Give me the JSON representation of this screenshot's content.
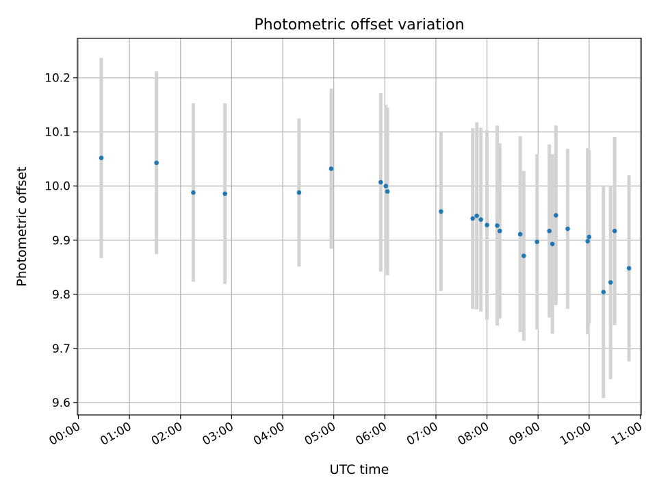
{
  "chart_data": {
    "type": "scatter",
    "title": "Photometric offset variation",
    "xlabel": "UTC time",
    "ylabel": "Photometric offset",
    "x_unit": "hours UTC",
    "xlim": [
      -0.02,
      11.02
    ],
    "ylim": [
      9.577,
      10.273
    ],
    "x_ticks": [
      0,
      1,
      2,
      3,
      4,
      5,
      6,
      7,
      8,
      9,
      10,
      11
    ],
    "x_tick_labels": [
      "00:00",
      "01:00",
      "02:00",
      "03:00",
      "04:00",
      "05:00",
      "06:00",
      "07:00",
      "08:00",
      "09:00",
      "10:00",
      "11:00"
    ],
    "y_ticks": [
      9.6,
      9.7,
      9.8,
      9.9,
      10.0,
      10.1,
      10.2
    ],
    "y_tick_labels": [
      "9.6",
      "9.7",
      "9.8",
      "9.9",
      "10.0",
      "10.1",
      "10.2"
    ],
    "grid": true,
    "legend": "none",
    "colors": {
      "marker": "#1f77b4",
      "errorbar": "#d3d3d3",
      "grid": "#b0b0b0"
    },
    "points": [
      {
        "x": 0.45,
        "y": 10.052,
        "err": 0.185
      },
      {
        "x": 1.53,
        "y": 10.043,
        "err": 0.169
      },
      {
        "x": 2.25,
        "y": 9.988,
        "err": 0.165
      },
      {
        "x": 2.87,
        "y": 9.986,
        "err": 0.167
      },
      {
        "x": 4.32,
        "y": 9.988,
        "err": 0.137
      },
      {
        "x": 4.95,
        "y": 10.032,
        "err": 0.148
      },
      {
        "x": 5.92,
        "y": 10.007,
        "err": 0.165
      },
      {
        "x": 6.02,
        "y": 10.0,
        "err": 0.15
      },
      {
        "x": 6.05,
        "y": 9.99,
        "err": 0.155
      },
      {
        "x": 7.1,
        "y": 9.953,
        "err": 0.147
      },
      {
        "x": 7.72,
        "y": 9.94,
        "err": 0.167
      },
      {
        "x": 7.8,
        "y": 9.945,
        "err": 0.173
      },
      {
        "x": 7.88,
        "y": 9.938,
        "err": 0.17
      },
      {
        "x": 8.0,
        "y": 9.928,
        "err": 0.175
      },
      {
        "x": 8.2,
        "y": 9.927,
        "err": 0.185
      },
      {
        "x": 8.25,
        "y": 9.917,
        "err": 0.162
      },
      {
        "x": 8.65,
        "y": 9.911,
        "err": 0.181
      },
      {
        "x": 8.72,
        "y": 9.871,
        "err": 0.157
      },
      {
        "x": 8.98,
        "y": 9.897,
        "err": 0.162
      },
      {
        "x": 9.22,
        "y": 9.917,
        "err": 0.16
      },
      {
        "x": 9.28,
        "y": 9.893,
        "err": 0.166
      },
      {
        "x": 9.35,
        "y": 9.946,
        "err": 0.166
      },
      {
        "x": 9.58,
        "y": 9.921,
        "err": 0.148
      },
      {
        "x": 9.97,
        "y": 9.898,
        "err": 0.172
      },
      {
        "x": 10.0,
        "y": 9.906,
        "err": 0.16
      },
      {
        "x": 10.28,
        "y": 9.804,
        "err": 0.196
      },
      {
        "x": 10.42,
        "y": 9.822,
        "err": 0.179
      },
      {
        "x": 10.5,
        "y": 9.917,
        "err": 0.174
      },
      {
        "x": 10.78,
        "y": 9.848,
        "err": 0.172
      }
    ]
  }
}
